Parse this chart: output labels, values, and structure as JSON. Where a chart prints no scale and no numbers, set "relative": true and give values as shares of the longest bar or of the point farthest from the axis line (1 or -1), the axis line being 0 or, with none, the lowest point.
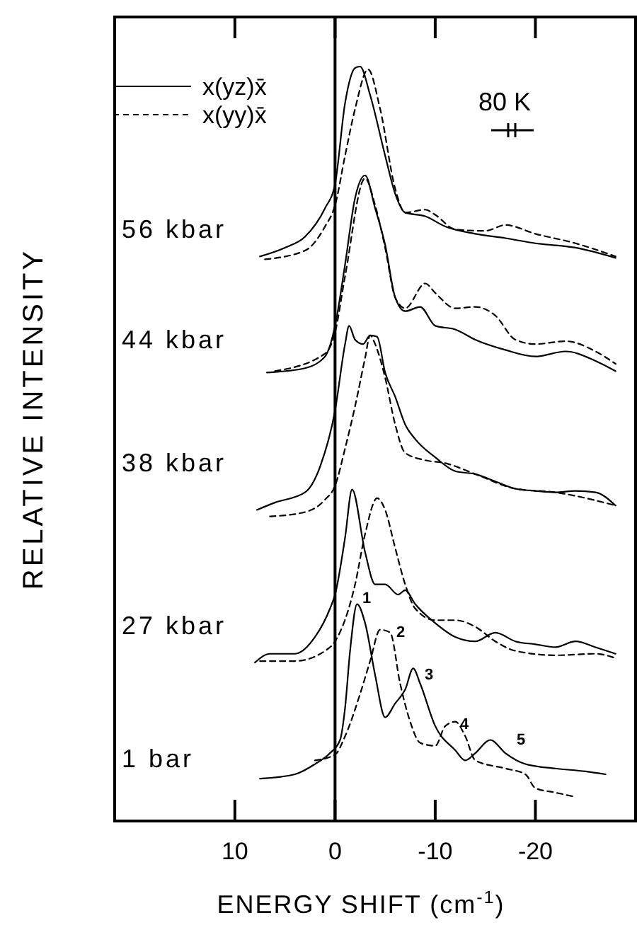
{
  "chart_data": {
    "type": "line",
    "relative": true,
    "xlabel": "ENERGY SHIFT (cm$^{-1}$)",
    "ylabel": "RELATIVE INTENSITY",
    "xlim": [
      22,
      -30
    ],
    "xticks": [
      10,
      0,
      -10,
      -20
    ],
    "grid": false,
    "legend": "top left",
    "ref_lines": [
      {
        "axis": "x",
        "value": 0
      }
    ],
    "annotations": [
      "80 K",
      "56 kbar",
      "44 kbar",
      "38 kbar",
      "27 kbar",
      "1 bar",
      "1",
      "2",
      "3",
      "4",
      "5"
    ],
    "series": [
      {
        "name": "x(yz)x̄",
        "color": "#000000",
        "line_style": "solid",
        "x": [
          7.5,
          5,
          3,
          1,
          0,
          -1,
          -2,
          -2.5,
          -3.5,
          -5,
          -6,
          -7,
          -9,
          -11,
          -14,
          -17,
          -20,
          -24,
          -28
        ],
        "values": [
          0.74,
          0.752,
          0.767,
          0.806,
          0.839,
          0.95,
          0.998,
          1.0,
          0.961,
          0.878,
          0.826,
          0.8,
          0.795,
          0.781,
          0.771,
          0.765,
          0.758,
          0.752,
          0.738
        ]
      },
      {
        "name": "x(yy)x̄",
        "color": "#000000",
        "line_style": "dashed",
        "x": [
          7,
          3,
          1,
          0,
          -1,
          -2,
          -3.3,
          -4.5,
          -6,
          -7,
          -9,
          -10,
          -12,
          -15,
          -17,
          -20,
          -24,
          -28
        ],
        "values": [
          0.736,
          0.748,
          0.781,
          0.81,
          0.878,
          0.942,
          0.996,
          0.942,
          0.833,
          0.8,
          0.804,
          0.797,
          0.777,
          0.775,
          0.783,
          0.771,
          0.758,
          0.74
        ]
      },
      {
        "color": "#000000",
        "line_style": "solid",
        "x": [
          6.8,
          3,
          1,
          0,
          -1,
          -2,
          -3,
          -4,
          -5,
          -6,
          -7,
          -8.5,
          -10,
          -12,
          -14,
          -17,
          -20,
          -23,
          -26,
          -28
        ],
        "values": [
          0.581,
          0.587,
          0.603,
          0.645,
          0.729,
          0.82,
          0.851,
          0.806,
          0.756,
          0.684,
          0.665,
          0.671,
          0.645,
          0.64,
          0.626,
          0.612,
          0.603,
          0.61,
          0.597,
          0.583
        ]
      },
      {
        "color": "#000000",
        "line_style": "dashed",
        "x": [
          6,
          1,
          0,
          -1,
          -3,
          -4,
          -5,
          -6,
          -7,
          -9,
          -10,
          -12,
          -14,
          -16,
          -18,
          -20,
          -23,
          -26,
          -28
        ],
        "values": [
          0.583,
          0.607,
          0.636,
          0.713,
          0.847,
          0.81,
          0.752,
          0.684,
          0.669,
          0.703,
          0.69,
          0.669,
          0.671,
          0.659,
          0.626,
          0.62,
          0.624,
          0.61,
          0.593
        ]
      },
      {
        "color": "#000000",
        "line_style": "solid",
        "x": [
          7.8,
          6,
          3,
          1.5,
          0,
          -1,
          -1.4,
          -2,
          -2.8,
          -3.5,
          -4.2,
          -5,
          -6,
          -7,
          -8,
          -10,
          -12,
          -14,
          -16,
          -18,
          -20,
          -22,
          -24,
          -26,
          -28
        ],
        "values": [
          0.393,
          0.403,
          0.417,
          0.452,
          0.529,
          0.62,
          0.645,
          0.626,
          0.62,
          0.632,
          0.63,
          0.581,
          0.548,
          0.51,
          0.49,
          0.465,
          0.446,
          0.442,
          0.432,
          0.422,
          0.419,
          0.417,
          0.419,
          0.417,
          0.399
        ]
      },
      {
        "color": "#000000",
        "line_style": "dashed",
        "x": [
          6.5,
          3,
          1,
          0,
          -1,
          -2,
          -3,
          -3.5,
          -4,
          -5,
          -6,
          -7,
          -9,
          -11,
          -14,
          -18,
          -22,
          -28
        ],
        "values": [
          0.384,
          0.39,
          0.407,
          0.426,
          0.477,
          0.535,
          0.601,
          0.632,
          0.62,
          0.574,
          0.51,
          0.471,
          0.461,
          0.457,
          0.442,
          0.422,
          0.417,
          0.399
        ]
      },
      {
        "color": "#000000",
        "line_style": "solid",
        "x": [
          8,
          6.5,
          4,
          2,
          0.5,
          0,
          -1,
          -1.7,
          -3,
          -4,
          -5,
          -6.3,
          -7,
          -8,
          -10,
          -12,
          -14,
          -16,
          -18,
          -20,
          -22,
          -24,
          -26,
          -28
        ],
        "values": [
          0.184,
          0.196,
          0.196,
          0.219,
          0.258,
          0.277,
          0.355,
          0.421,
          0.335,
          0.291,
          0.291,
          0.277,
          0.283,
          0.264,
          0.238,
          0.219,
          0.213,
          0.225,
          0.213,
          0.209,
          0.205,
          0.213,
          0.205,
          0.196
        ]
      },
      {
        "color": "#000000",
        "line_style": "dashed",
        "x": [
          7.5,
          4,
          1,
          0,
          -2,
          -3,
          -4.2,
          -5,
          -6,
          -7,
          -8,
          -10,
          -12,
          -14,
          -16,
          -18,
          -22,
          -26,
          -28
        ],
        "values": [
          0.186,
          0.186,
          0.2,
          0.213,
          0.291,
          0.36,
          0.409,
          0.393,
          0.341,
          0.291,
          0.258,
          0.242,
          0.242,
          0.233,
          0.213,
          0.2,
          0.194,
          0.196,
          0.19
        ]
      },
      {
        "color": "#000000",
        "line_style": "solid",
        "x": [
          7.5,
          4,
          2,
          0.5,
          -0.5,
          -1,
          -1.5,
          -2.2,
          -3,
          -4,
          -5,
          -6,
          -7,
          -7.8,
          -8.5,
          -10,
          -12,
          -13,
          -14,
          -15.5,
          -17,
          -19,
          -22,
          -25,
          -27
        ],
        "values": [
          0.025,
          0.031,
          0.045,
          0.06,
          0.078,
          0.122,
          0.2,
          0.264,
          0.238,
          0.167,
          0.109,
          0.128,
          0.147,
          0.176,
          0.155,
          0.097,
          0.064,
          0.05,
          0.06,
          0.078,
          0.06,
          0.045,
          0.039,
          0.035,
          0.031
        ]
      },
      {
        "color": "#000000",
        "line_style": "dashed",
        "x": [
          2,
          0,
          -1,
          -2.5,
          -3.5,
          -4.5,
          -5.5,
          -6.5,
          -7.5,
          -8.5,
          -10,
          -11,
          -12,
          -13,
          -14,
          -17,
          -19,
          -20,
          -22,
          -24
        ],
        "values": [
          0.05,
          0.058,
          0.083,
          0.141,
          0.186,
          0.229,
          0.225,
          0.155,
          0.103,
          0.074,
          0.07,
          0.097,
          0.103,
          0.083,
          0.05,
          0.039,
          0.031,
          0.012,
          0.006,
          0
        ]
      }
    ]
  }
}
